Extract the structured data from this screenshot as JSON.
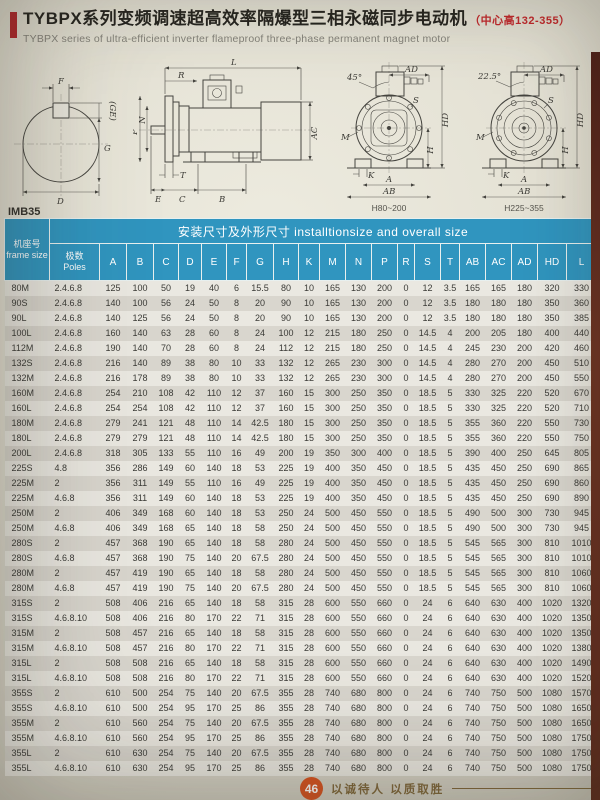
{
  "header": {
    "title_cn": "TYBPX系列变频调速超高效率隔爆型三相永磁同步电动机",
    "title_note": "（中心高132-355）",
    "subtitle_en": "TYBPX series of ultra-efficient inverter flameproof three-phase permanent magnet motor"
  },
  "diagrams": {
    "mounting_label": "IMB35",
    "shaft": {
      "f": "F",
      "ge": "(GE)",
      "g": "G",
      "d": "D"
    },
    "side": {
      "l": "L",
      "r": "R",
      "p": "P",
      "n": "N",
      "t": "T",
      "e": "E",
      "c": "C",
      "b": "B",
      "ac": "AC"
    },
    "front1": {
      "angle": "45°",
      "ad": "AD",
      "hd": "HD",
      "s": "S",
      "m": "M",
      "h": "H",
      "k": "K",
      "a": "A",
      "ab": "AB",
      "caption": "H80~200"
    },
    "front2": {
      "angle": "22.5°",
      "ad": "AD",
      "hd": "HD",
      "s": "S",
      "m": "M",
      "h": "H",
      "k": "K",
      "a": "A",
      "ab": "AB",
      "caption": "H225~355"
    }
  },
  "table": {
    "group_header": "安装尺寸及外形尺寸 installtionsize and overall size",
    "frame_header_cn": "机座号",
    "frame_header_en": "frame size",
    "poles_header_cn": "极数",
    "poles_header_en": "Poles",
    "dim_columns": [
      "A",
      "B",
      "C",
      "D",
      "E",
      "F",
      "G",
      "H",
      "K",
      "M",
      "N",
      "P",
      "R",
      "S",
      "T",
      "AB",
      "AC",
      "AD",
      "HD",
      "L"
    ],
    "rows": [
      {
        "frame": "80M",
        "poles": "2.4.6.8",
        "dims": [
          "125",
          "100",
          "50",
          "19",
          "40",
          "6",
          "15.5",
          "80",
          "10",
          "165",
          "130",
          "200",
          "0",
          "12",
          "3.5",
          "165",
          "165",
          "180",
          "320",
          "330"
        ]
      },
      {
        "frame": "90S",
        "poles": "2.4.6.8",
        "dims": [
          "140",
          "100",
          "56",
          "24",
          "50",
          "8",
          "20",
          "90",
          "10",
          "165",
          "130",
          "200",
          "0",
          "12",
          "3.5",
          "180",
          "180",
          "180",
          "350",
          "360"
        ]
      },
      {
        "frame": "90L",
        "poles": "2.4.6.8",
        "dims": [
          "140",
          "125",
          "56",
          "24",
          "50",
          "8",
          "20",
          "90",
          "10",
          "165",
          "130",
          "200",
          "0",
          "12",
          "3.5",
          "180",
          "180",
          "180",
          "350",
          "385"
        ]
      },
      {
        "frame": "100L",
        "poles": "2.4.6.8",
        "dims": [
          "160",
          "140",
          "63",
          "28",
          "60",
          "8",
          "24",
          "100",
          "12",
          "215",
          "180",
          "250",
          "0",
          "14.5",
          "4",
          "200",
          "205",
          "180",
          "400",
          "440"
        ]
      },
      {
        "frame": "112M",
        "poles": "2.4.6.8",
        "dims": [
          "190",
          "140",
          "70",
          "28",
          "60",
          "8",
          "24",
          "112",
          "12",
          "215",
          "180",
          "250",
          "0",
          "14.5",
          "4",
          "245",
          "230",
          "200",
          "420",
          "460"
        ]
      },
      {
        "frame": "132S",
        "poles": "2.4.6.8",
        "dims": [
          "216",
          "140",
          "89",
          "38",
          "80",
          "10",
          "33",
          "132",
          "12",
          "265",
          "230",
          "300",
          "0",
          "14.5",
          "4",
          "280",
          "270",
          "200",
          "450",
          "510"
        ]
      },
      {
        "frame": "132M",
        "poles": "2.4.6.8",
        "dims": [
          "216",
          "178",
          "89",
          "38",
          "80",
          "10",
          "33",
          "132",
          "12",
          "265",
          "230",
          "300",
          "0",
          "14.5",
          "4",
          "280",
          "270",
          "200",
          "450",
          "550"
        ]
      },
      {
        "frame": "160M",
        "poles": "2.4.6.8",
        "dims": [
          "254",
          "210",
          "108",
          "42",
          "110",
          "12",
          "37",
          "160",
          "15",
          "300",
          "250",
          "350",
          "0",
          "18.5",
          "5",
          "330",
          "325",
          "220",
          "520",
          "670"
        ]
      },
      {
        "frame": "160L",
        "poles": "2.4.6.8",
        "dims": [
          "254",
          "254",
          "108",
          "42",
          "110",
          "12",
          "37",
          "160",
          "15",
          "300",
          "250",
          "350",
          "0",
          "18.5",
          "5",
          "330",
          "325",
          "220",
          "520",
          "710"
        ]
      },
      {
        "frame": "180M",
        "poles": "2.4.6.8",
        "dims": [
          "279",
          "241",
          "121",
          "48",
          "110",
          "14",
          "42.5",
          "180",
          "15",
          "300",
          "250",
          "350",
          "0",
          "18.5",
          "5",
          "355",
          "360",
          "220",
          "550",
          "730"
        ]
      },
      {
        "frame": "180L",
        "poles": "2.4.6.8",
        "dims": [
          "279",
          "279",
          "121",
          "48",
          "110",
          "14",
          "42.5",
          "180",
          "15",
          "300",
          "250",
          "350",
          "0",
          "18.5",
          "5",
          "355",
          "360",
          "220",
          "550",
          "750"
        ]
      },
      {
        "frame": "200L",
        "poles": "2.4.6.8",
        "dims": [
          "318",
          "305",
          "133",
          "55",
          "110",
          "16",
          "49",
          "200",
          "19",
          "350",
          "300",
          "400",
          "0",
          "18.5",
          "5",
          "390",
          "400",
          "250",
          "645",
          "805"
        ]
      },
      {
        "frame": "225S",
        "poles": "4.8",
        "dims": [
          "356",
          "286",
          "149",
          "60",
          "140",
          "18",
          "53",
          "225",
          "19",
          "400",
          "350",
          "450",
          "0",
          "18.5",
          "5",
          "435",
          "450",
          "250",
          "690",
          "865"
        ]
      },
      {
        "frame": "225M",
        "poles": "2",
        "dims": [
          "356",
          "311",
          "149",
          "55",
          "110",
          "16",
          "49",
          "225",
          "19",
          "400",
          "350",
          "450",
          "0",
          "18.5",
          "5",
          "435",
          "450",
          "250",
          "690",
          "860"
        ]
      },
      {
        "frame": "225M",
        "poles": "4.6.8",
        "dims": [
          "356",
          "311",
          "149",
          "60",
          "140",
          "18",
          "53",
          "225",
          "19",
          "400",
          "350",
          "450",
          "0",
          "18.5",
          "5",
          "435",
          "450",
          "250",
          "690",
          "890"
        ]
      },
      {
        "frame": "250M",
        "poles": "2",
        "dims": [
          "406",
          "349",
          "168",
          "60",
          "140",
          "18",
          "53",
          "250",
          "24",
          "500",
          "450",
          "550",
          "0",
          "18.5",
          "5",
          "490",
          "500",
          "300",
          "730",
          "945"
        ]
      },
      {
        "frame": "250M",
        "poles": "4.6.8",
        "dims": [
          "406",
          "349",
          "168",
          "65",
          "140",
          "18",
          "58",
          "250",
          "24",
          "500",
          "450",
          "550",
          "0",
          "18.5",
          "5",
          "490",
          "500",
          "300",
          "730",
          "945"
        ]
      },
      {
        "frame": "280S",
        "poles": "2",
        "dims": [
          "457",
          "368",
          "190",
          "65",
          "140",
          "18",
          "58",
          "280",
          "24",
          "500",
          "450",
          "550",
          "0",
          "18.5",
          "5",
          "545",
          "565",
          "300",
          "810",
          "1010"
        ]
      },
      {
        "frame": "280S",
        "poles": "4.6.8",
        "dims": [
          "457",
          "368",
          "190",
          "75",
          "140",
          "20",
          "67.5",
          "280",
          "24",
          "500",
          "450",
          "550",
          "0",
          "18.5",
          "5",
          "545",
          "565",
          "300",
          "810",
          "1010"
        ]
      },
      {
        "frame": "280M",
        "poles": "2",
        "dims": [
          "457",
          "419",
          "190",
          "65",
          "140",
          "18",
          "58",
          "280",
          "24",
          "500",
          "450",
          "550",
          "0",
          "18.5",
          "5",
          "545",
          "565",
          "300",
          "810",
          "1060"
        ]
      },
      {
        "frame": "280M",
        "poles": "4.6.8",
        "dims": [
          "457",
          "419",
          "190",
          "75",
          "140",
          "20",
          "67.5",
          "280",
          "24",
          "500",
          "450",
          "550",
          "0",
          "18.5",
          "5",
          "545",
          "565",
          "300",
          "810",
          "1060"
        ]
      },
      {
        "frame": "315S",
        "poles": "2",
        "dims": [
          "508",
          "406",
          "216",
          "65",
          "140",
          "18",
          "58",
          "315",
          "28",
          "600",
          "550",
          "660",
          "0",
          "24",
          "6",
          "640",
          "630",
          "400",
          "1020",
          "1320"
        ]
      },
      {
        "frame": "315S",
        "poles": "4.6.8.10",
        "dims": [
          "508",
          "406",
          "216",
          "80",
          "170",
          "22",
          "71",
          "315",
          "28",
          "600",
          "550",
          "660",
          "0",
          "24",
          "6",
          "640",
          "630",
          "400",
          "1020",
          "1350"
        ]
      },
      {
        "frame": "315M",
        "poles": "2",
        "dims": [
          "508",
          "457",
          "216",
          "65",
          "140",
          "18",
          "58",
          "315",
          "28",
          "600",
          "550",
          "660",
          "0",
          "24",
          "6",
          "640",
          "630",
          "400",
          "1020",
          "1350"
        ]
      },
      {
        "frame": "315M",
        "poles": "4.6.8.10",
        "dims": [
          "508",
          "457",
          "216",
          "80",
          "170",
          "22",
          "71",
          "315",
          "28",
          "600",
          "550",
          "660",
          "0",
          "24",
          "6",
          "640",
          "630",
          "400",
          "1020",
          "1380"
        ]
      },
      {
        "frame": "315L",
        "poles": "2",
        "dims": [
          "508",
          "508",
          "216",
          "65",
          "140",
          "18",
          "58",
          "315",
          "28",
          "600",
          "550",
          "660",
          "0",
          "24",
          "6",
          "640",
          "630",
          "400",
          "1020",
          "1490"
        ]
      },
      {
        "frame": "315L",
        "poles": "4.6.8.10",
        "dims": [
          "508",
          "508",
          "216",
          "80",
          "170",
          "22",
          "71",
          "315",
          "28",
          "600",
          "550",
          "660",
          "0",
          "24",
          "6",
          "640",
          "630",
          "400",
          "1020",
          "1520"
        ]
      },
      {
        "frame": "355S",
        "poles": "2",
        "dims": [
          "610",
          "500",
          "254",
          "75",
          "140",
          "20",
          "67.5",
          "355",
          "28",
          "740",
          "680",
          "800",
          "0",
          "24",
          "6",
          "740",
          "750",
          "500",
          "1080",
          "1570"
        ]
      },
      {
        "frame": "355S",
        "poles": "4.6.8.10",
        "dims": [
          "610",
          "500",
          "254",
          "95",
          "170",
          "25",
          "86",
          "355",
          "28",
          "740",
          "680",
          "800",
          "0",
          "24",
          "6",
          "740",
          "750",
          "500",
          "1080",
          "1650"
        ]
      },
      {
        "frame": "355M",
        "poles": "2",
        "dims": [
          "610",
          "560",
          "254",
          "75",
          "140",
          "20",
          "67.5",
          "355",
          "28",
          "740",
          "680",
          "800",
          "0",
          "24",
          "6",
          "740",
          "750",
          "500",
          "1080",
          "1650"
        ]
      },
      {
        "frame": "355M",
        "poles": "4.6.8.10",
        "dims": [
          "610",
          "560",
          "254",
          "95",
          "170",
          "25",
          "86",
          "355",
          "28",
          "740",
          "680",
          "800",
          "0",
          "24",
          "6",
          "740",
          "750",
          "500",
          "1080",
          "1750"
        ]
      },
      {
        "frame": "355L",
        "poles": "2",
        "dims": [
          "610",
          "630",
          "254",
          "75",
          "140",
          "20",
          "67.5",
          "355",
          "28",
          "740",
          "680",
          "800",
          "0",
          "24",
          "6",
          "740",
          "750",
          "500",
          "1080",
          "1750"
        ]
      },
      {
        "frame": "355L",
        "poles": "4.6.8.10",
        "dims": [
          "610",
          "630",
          "254",
          "95",
          "170",
          "25",
          "86",
          "355",
          "28",
          "740",
          "680",
          "800",
          "0",
          "24",
          "6",
          "740",
          "750",
          "500",
          "1080",
          "1750"
        ]
      }
    ]
  },
  "footer": {
    "page_badge": "46",
    "slogan": "以诚待人  以质取胜"
  },
  "colors": {
    "header_blue": "#3095bf",
    "accent_red": "#b3262c",
    "badge_orange": "#d85320",
    "edge_maroon": "#5d2a1c",
    "page_bg": "#e3e0d3"
  }
}
